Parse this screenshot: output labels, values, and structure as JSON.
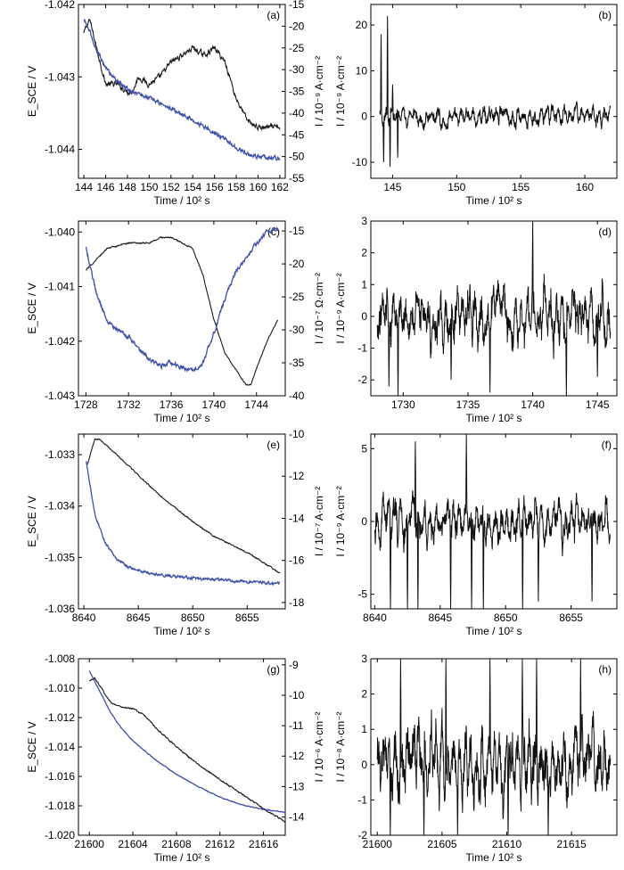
{
  "colors": {
    "potential": "#1a1a1a",
    "current": "#3d4fa8",
    "noise": "#111111",
    "axis": "#000000"
  },
  "chart_data": [
    {
      "id": "a",
      "type": "line",
      "panel_label": "(a)",
      "xlabel": "Time / 10² s",
      "ylabel_left": "E_SCE / V",
      "ylabel_right": "I / 10⁻⁹ A·cm⁻²",
      "xlim": [
        143.5,
        162.5
      ],
      "ylim_left": [
        -1.0444,
        -1.042
      ],
      "ylim_right": [
        -55,
        -15
      ],
      "x_ticks": [
        "144",
        "146",
        "148",
        "150",
        "152",
        "154",
        "156",
        "158",
        "160",
        "162"
      ],
      "x_tick_values": [
        144,
        146,
        148,
        150,
        152,
        154,
        156,
        158,
        160,
        162
      ],
      "yl_ticks": [
        "-1.042",
        "-1.043",
        "-1.044"
      ],
      "yl_tick_values": [
        -1.042,
        -1.043,
        -1.044
      ],
      "yr_ticks": [
        "-15",
        "-20",
        "-25",
        "-30",
        "-35",
        "-40",
        "-45",
        "-50",
        "-55"
      ],
      "yr_tick_values": [
        -15,
        -20,
        -25,
        -30,
        -35,
        -40,
        -45,
        -50,
        -55
      ],
      "series": [
        {
          "name": "potential",
          "axis": "left",
          "x": [
            144.0,
            144.5,
            145.0,
            146.0,
            147.0,
            148.0,
            148.5,
            149.0,
            150.0,
            151.0,
            152.0,
            153.0,
            154.0,
            155.0,
            156.0,
            157.0,
            158.0,
            159.0,
            160.0,
            161.0,
            162.0
          ],
          "values": [
            -1.0424,
            -1.0422,
            -1.0425,
            -1.0431,
            -1.0431,
            -1.0432,
            -1.0432,
            -1.043,
            -1.0431,
            -1.043,
            -1.0428,
            -1.0427,
            -1.0426,
            -1.0427,
            -1.0426,
            -1.0428,
            -1.0433,
            -1.0436,
            -1.0437,
            -1.0437,
            -1.0437
          ],
          "noise": 3e-05
        },
        {
          "name": "current",
          "axis": "right",
          "x": [
            144.0,
            144.5,
            145.0,
            146.0,
            147.0,
            148.0,
            150.0,
            152.0,
            154.0,
            156.0,
            157.0,
            158.0,
            159.0,
            160.0,
            161.0,
            162.0
          ],
          "values": [
            -18.5,
            -21.0,
            -24.5,
            -29.5,
            -32.5,
            -34.5,
            -36.5,
            -39.0,
            -41.5,
            -44.5,
            -46.0,
            -48.0,
            -49.5,
            -50.0,
            -50.2,
            -50.4
          ],
          "noise": 0.35
        }
      ]
    },
    {
      "id": "b",
      "type": "line",
      "panel_label": "(b)",
      "xlabel": "Time / 10² s",
      "ylabel": "I / 10⁻⁹ A·cm⁻²",
      "xlim": [
        143.3,
        162.5
      ],
      "ylim": [
        -13.5,
        24.5
      ],
      "x_ticks": [
        "145",
        "150",
        "155",
        "160"
      ],
      "x_tick_values": [
        145,
        150,
        155,
        160
      ],
      "y_ticks": [
        "20",
        "10",
        "0",
        "-10"
      ],
      "y_tick_values": [
        20,
        10,
        0,
        -10
      ],
      "series": [
        {
          "name": "current noise",
          "x": [
            144.0,
            162.0
          ],
          "amplitude": 3.0,
          "spikes": [
            [
              144.1,
              18
            ],
            [
              144.3,
              -10
            ],
            [
              144.6,
              22
            ],
            [
              144.8,
              -11
            ],
            [
              145.0,
              7
            ],
            [
              145.4,
              -9
            ]
          ]
        }
      ]
    },
    {
      "id": "c",
      "type": "line",
      "panel_label": "(c)",
      "xlabel": "Time / 10² s",
      "ylabel_left": "E_SCE / V",
      "ylabel_right": "I / 10⁻⁷ Ω·cm⁻²",
      "xlim": [
        1727.3,
        1746.7
      ],
      "ylim_left": [
        -1.043,
        -1.0398
      ],
      "ylim_right": [
        -40,
        -13.5
      ],
      "x_ticks": [
        "1728",
        "1732",
        "1736",
        "1740",
        "1744"
      ],
      "x_tick_values": [
        1728,
        1732,
        1736,
        1740,
        1744
      ],
      "yl_ticks": [
        "-1.040",
        "-1.041",
        "-1.042",
        "-1.043"
      ],
      "yl_tick_values": [
        -1.04,
        -1.041,
        -1.042,
        -1.043
      ],
      "yr_ticks": [
        "-15",
        "-20",
        "-25",
        "-30",
        "-35",
        "-40"
      ],
      "yr_tick_values": [
        -15,
        -20,
        -25,
        -30,
        -35,
        -40
      ],
      "series": [
        {
          "name": "potential",
          "axis": "left",
          "x": [
            1728,
            1729,
            1730,
            1732,
            1734,
            1735,
            1736,
            1737,
            1738,
            1739,
            1740,
            1741,
            1742,
            1743,
            1743.5,
            1744,
            1745,
            1746
          ],
          "values": [
            -1.0407,
            -1.0405,
            -1.0403,
            -1.0402,
            -1.0402,
            -1.0401,
            -1.0401,
            -1.0402,
            -1.0403,
            -1.0408,
            -1.0416,
            -1.0422,
            -1.0425,
            -1.0428,
            -1.0428,
            -1.0425,
            -1.042,
            -1.0416
          ],
          "noise": 1e-05
        },
        {
          "name": "current",
          "axis": "right",
          "x": [
            1728,
            1729,
            1730,
            1731,
            1732,
            1733,
            1734,
            1735,
            1736,
            1737,
            1738,
            1739,
            1740,
            1741,
            1742,
            1743,
            1744,
            1745,
            1746
          ],
          "values": [
            -17.5,
            -24.5,
            -28.5,
            -30.0,
            -31.0,
            -33.0,
            -34.5,
            -35.5,
            -35.0,
            -35.8,
            -36.0,
            -35.0,
            -30.5,
            -25.5,
            -21.5,
            -19.0,
            -17.0,
            -15.0,
            -14.7
          ],
          "noise": 0.25
        }
      ]
    },
    {
      "id": "d",
      "type": "line",
      "panel_label": "(d)",
      "xlabel": "Time / 10² s",
      "ylabel": "I / 10⁻⁹ A·cm⁻²",
      "xlim": [
        1727.5,
        1746.5
      ],
      "ylim": [
        -2.5,
        3.0
      ],
      "x_ticks": [
        "1730",
        "1735",
        "1740",
        "1745"
      ],
      "x_tick_values": [
        1730,
        1735,
        1740,
        1745
      ],
      "y_ticks": [
        "3",
        "2",
        "1",
        "0",
        "-1",
        "-2"
      ],
      "y_tick_values": [
        3,
        2,
        1,
        0,
        -1,
        -2
      ],
      "series": [
        {
          "name": "current noise",
          "x": [
            1728,
            1746
          ],
          "amplitude": 1.2,
          "spikes": [
            [
              1728.9,
              -2.2
            ],
            [
              1729.6,
              -2.5
            ],
            [
              1733.7,
              -2.0
            ],
            [
              1736.7,
              -2.4
            ],
            [
              1740.0,
              3.0
            ],
            [
              1742.6,
              -2.5
            ],
            [
              1745.0,
              -1.9
            ]
          ]
        }
      ]
    },
    {
      "id": "e",
      "type": "line",
      "panel_label": "(e)",
      "xlabel": "Time / 10² s",
      "ylabel_left": "E_SCE / V",
      "ylabel_right": "I / 10⁻⁷ A·cm⁻²",
      "xlim": [
        8639.5,
        8658.5
      ],
      "ylim_left": [
        -1.036,
        -1.0326
      ],
      "ylim_right": [
        -18.3,
        -10
      ],
      "x_ticks": [
        "8640",
        "8645",
        "8650",
        "8655"
      ],
      "x_tick_values": [
        8640,
        8645,
        8650,
        8655
      ],
      "yl_ticks": [
        "-1.033",
        "-1.034",
        "-1.035",
        "-1.036"
      ],
      "yl_tick_values": [
        -1.033,
        -1.034,
        -1.035,
        -1.036
      ],
      "yr_ticks": [
        "-10",
        "-12",
        "-14",
        "-16",
        "-18"
      ],
      "yr_tick_values": [
        -10,
        -12,
        -14,
        -16,
        -18
      ],
      "series": [
        {
          "name": "potential",
          "axis": "left",
          "x": [
            8640.3,
            8641,
            8641.5,
            8642,
            8643,
            8645,
            8647,
            8650,
            8652,
            8655,
            8658
          ],
          "values": [
            -1.0332,
            -1.0327,
            -1.0327,
            -1.0328,
            -1.033,
            -1.0334,
            -1.0338,
            -1.0343,
            -1.0346,
            -1.0349,
            -1.0353
          ],
          "noise": 1e-05
        },
        {
          "name": "current",
          "axis": "right",
          "x": [
            8640.2,
            8641,
            8642,
            8643,
            8644,
            8645,
            8647,
            8650,
            8653,
            8655,
            8658
          ],
          "values": [
            -11.3,
            -13.8,
            -15.2,
            -15.9,
            -16.3,
            -16.5,
            -16.7,
            -16.85,
            -16.95,
            -17.0,
            -17.1
          ],
          "noise": 0.05
        }
      ]
    },
    {
      "id": "f",
      "type": "line",
      "panel_label": "(f)",
      "xlabel": "Time / 10² s",
      "ylabel": "I / 10⁻⁹ A·cm⁻²",
      "xlim": [
        8639.7,
        8658.5
      ],
      "ylim": [
        -6.0,
        6.0
      ],
      "x_ticks": [
        "8640",
        "8645",
        "8650",
        "8655"
      ],
      "x_tick_values": [
        8640,
        8645,
        8650,
        8655
      ],
      "y_ticks": [
        "5",
        "0",
        "-5"
      ],
      "y_tick_values": [
        5,
        0,
        -5
      ],
      "series": [
        {
          "name": "current noise",
          "x": [
            8640,
            8658
          ],
          "amplitude": 2.0,
          "spikes": [
            [
              8641.2,
              -6
            ],
            [
              8642.5,
              -6
            ],
            [
              8643.1,
              5.5
            ],
            [
              8643.3,
              -6
            ],
            [
              8645.8,
              -6
            ],
            [
              8647.0,
              6
            ],
            [
              8647.4,
              -6
            ],
            [
              8648.3,
              -6
            ],
            [
              8651.3,
              -6
            ],
            [
              8652.5,
              -5.5
            ],
            [
              8656.6,
              -5.5
            ]
          ]
        }
      ]
    },
    {
      "id": "g",
      "type": "line",
      "panel_label": "(g)",
      "xlabel": "Time / 10² s",
      "ylabel_left": "E_SCE / V",
      "ylabel_right": "I / 10⁻⁶ A·cm⁻²",
      "xlim": [
        21599,
        21618
      ],
      "ylim_left": [
        -1.02,
        -1.008
      ],
      "ylim_right": [
        -14.6,
        -8.8
      ],
      "x_ticks": [
        "21600",
        "21604",
        "21608",
        "21612",
        "21616"
      ],
      "x_tick_values": [
        21600,
        21604,
        21608,
        21612,
        21616
      ],
      "yl_ticks": [
        "-1.008",
        "-1.010",
        "-1.012",
        "-1.014",
        "-1.016",
        "-1.018",
        "-1.020"
      ],
      "yl_tick_values": [
        -1.008,
        -1.01,
        -1.012,
        -1.014,
        -1.016,
        -1.018,
        -1.02
      ],
      "yr_ticks": [
        "-9",
        "-10",
        "-11",
        "-12",
        "-13",
        "-14"
      ],
      "yr_tick_values": [
        -9,
        -10,
        -11,
        -12,
        -13,
        -14
      ],
      "series": [
        {
          "name": "potential",
          "axis": "left",
          "x": [
            21600,
            21600.5,
            21601,
            21602,
            21603,
            21604,
            21605,
            21606,
            21608,
            21610,
            21612,
            21614,
            21616,
            21618
          ],
          "values": [
            -1.0095,
            -1.0093,
            -1.0099,
            -1.011,
            -1.0113,
            -1.0114,
            -1.0118,
            -1.0126,
            -1.014,
            -1.0152,
            -1.0162,
            -1.0172,
            -1.0182,
            -1.0191
          ],
          "noise": 4e-05
        },
        {
          "name": "current",
          "axis": "right",
          "x": [
            21600,
            21601,
            21602,
            21603,
            21604,
            21606,
            21608,
            21610,
            21612,
            21614,
            21616,
            21618
          ],
          "values": [
            -9.2,
            -9.9,
            -10.6,
            -11.1,
            -11.5,
            -12.1,
            -12.6,
            -13.0,
            -13.35,
            -13.6,
            -13.75,
            -13.85
          ],
          "noise": 0.01
        }
      ]
    },
    {
      "id": "h",
      "type": "line",
      "panel_label": "(h)",
      "xlabel": "Time / 10² s",
      "ylabel": "I / 10⁻⁸ A·cm⁻²",
      "xlim": [
        21599.5,
        21618.5
      ],
      "ylim": [
        -2.0,
        3.0
      ],
      "x_ticks": [
        "21600",
        "21605",
        "21610",
        "21615"
      ],
      "x_tick_values": [
        21600,
        21605,
        21610,
        21615
      ],
      "y_ticks": [
        "3",
        "2",
        "1",
        "0",
        "-1",
        "-2"
      ],
      "y_tick_values": [
        3,
        2,
        1,
        0,
        -1,
        -2
      ],
      "series": [
        {
          "name": "current noise",
          "x": [
            21600,
            21618
          ],
          "amplitude": 1.4,
          "spikes": [
            [
              21601.0,
              -2
            ],
            [
              21601.8,
              3
            ],
            [
              21603.6,
              -2
            ],
            [
              21605.3,
              3
            ],
            [
              21606.2,
              -2
            ],
            [
              21608.7,
              3
            ],
            [
              21610.1,
              -2
            ],
            [
              21611.2,
              3
            ],
            [
              21612.3,
              3
            ],
            [
              21613.2,
              -2
            ],
            [
              21615.7,
              3
            ]
          ]
        }
      ]
    }
  ]
}
